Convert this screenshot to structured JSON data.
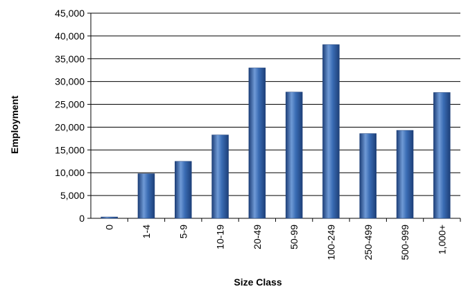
{
  "chart_data": {
    "type": "bar",
    "title": "",
    "xlabel": "Size Class",
    "ylabel": "Employment",
    "categories": [
      "0",
      "1-4",
      "5-9",
      "10-19",
      "20-49",
      "50-99",
      "100-249",
      "250-499",
      "500-999",
      "1,000+"
    ],
    "values": [
      300,
      9800,
      12500,
      18300,
      33000,
      27700,
      38100,
      18600,
      19300,
      27600
    ],
    "ylim": [
      0,
      45000
    ],
    "yticks": [
      0,
      5000,
      10000,
      15000,
      20000,
      25000,
      30000,
      35000,
      40000,
      45000
    ],
    "ytick_labels": [
      "0",
      "5,000",
      "10,000",
      "15,000",
      "20,000",
      "25,000",
      "30,000",
      "35,000",
      "40,000",
      "45,000"
    ],
    "grid": true,
    "legend": "none",
    "colors": {
      "bar_light": "#6f9ad6",
      "bar_mid": "#3a6cb4",
      "bar_dark": "#1d3f78",
      "grid": "#000000"
    }
  }
}
